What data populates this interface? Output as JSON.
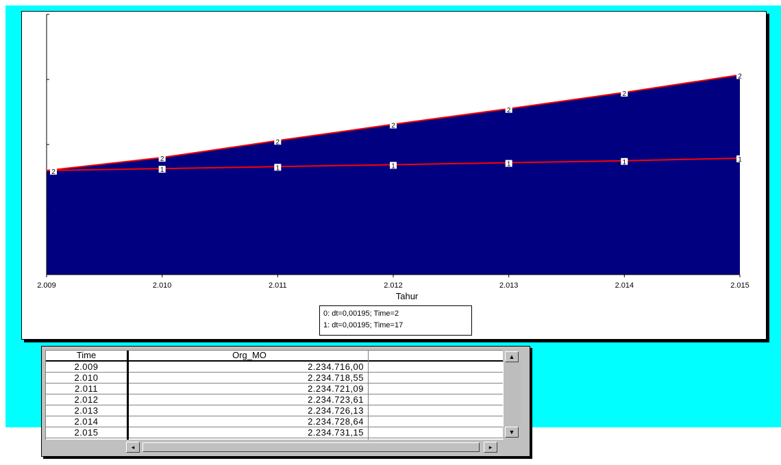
{
  "chart_data": {
    "type": "area",
    "xlabel": "Tahur",
    "x": [
      2.009,
      2.01,
      2.011,
      2.012,
      2.013,
      2.014,
      2.015
    ],
    "x_tick_labels": [
      "2.009",
      "2.010",
      "2.011",
      "2.012",
      "2.013",
      "2.014",
      "2.015"
    ],
    "ylim": [
      0,
      4
    ],
    "y_ticks": [
      0,
      1,
      2,
      3,
      4
    ],
    "series": [
      {
        "name": "1",
        "values": [
          1.6,
          1.63,
          1.66,
          1.69,
          1.72,
          1.75,
          1.79
        ],
        "color": "#ff0000"
      },
      {
        "name": "2",
        "values": [
          1.6,
          1.8,
          2.06,
          2.31,
          2.55,
          2.8,
          3.07
        ],
        "color": "#ff0000"
      }
    ],
    "fill_color": "#000080",
    "legend": [
      "0: dt=0,00195; Time=2",
      "1: dt=0,00195; Time=17"
    ],
    "grid": false
  },
  "table": {
    "headers": [
      "Time",
      "Org_MO"
    ],
    "rows": [
      [
        "2.009",
        "2.234.716,00"
      ],
      [
        "2.010",
        "2.234.718,55"
      ],
      [
        "2.011",
        "2.234.721,09"
      ],
      [
        "2.012",
        "2.234.723,61"
      ],
      [
        "2.013",
        "2.234.726,13"
      ],
      [
        "2.014",
        "2.234.728,64"
      ],
      [
        "2.015",
        "2.234.731,15"
      ]
    ]
  },
  "scroll": {
    "up_glyph": "▲",
    "down_glyph": "▼",
    "left_glyph": "◂",
    "right_glyph": "▸"
  },
  "colors": {
    "background": "#00ffff",
    "area_fill": "#000080",
    "line": "#ff0000"
  }
}
